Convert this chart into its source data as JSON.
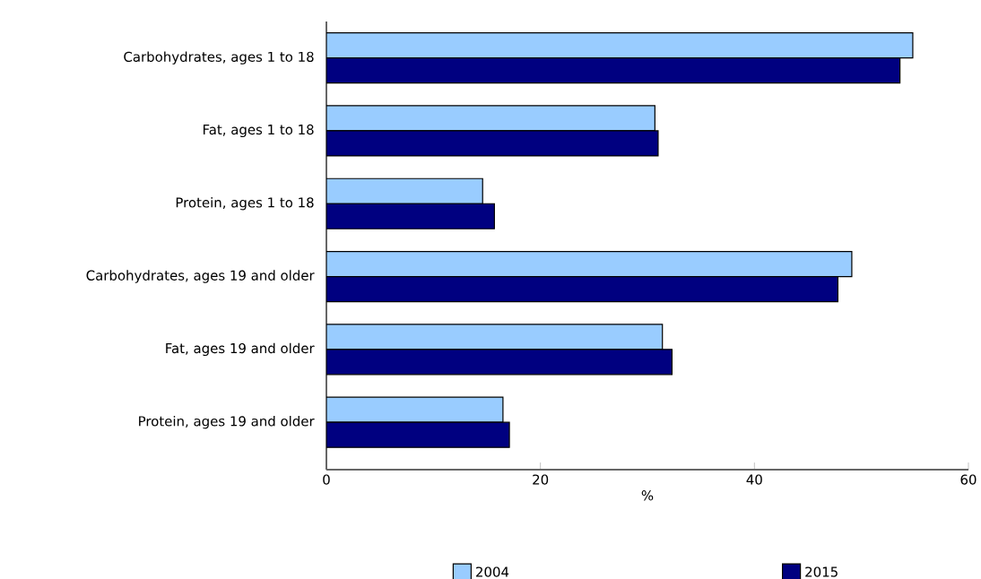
{
  "chart_data": {
    "type": "bar",
    "orientation": "horizontal",
    "xlabel": "%",
    "categories": [
      "Carbohydrates, ages 1 to 18",
      "Fat, ages 1 to 18",
      "Protein, ages 1 to 18",
      "Carbohydrates, ages 19 and older",
      "Fat, ages 19 and older",
      "Protein, ages 19 and older"
    ],
    "series": [
      {
        "name": "2004",
        "color": "#99ccff",
        "values": [
          54.8,
          30.7,
          14.6,
          49.1,
          31.4,
          16.5
        ]
      },
      {
        "name": "2015",
        "color": "#000080",
        "values": [
          53.6,
          31.0,
          15.7,
          47.8,
          32.3,
          17.1
        ]
      }
    ],
    "xlim": [
      0,
      60
    ],
    "xticks": [
      0,
      20,
      40,
      60
    ],
    "legend": "bottom"
  }
}
